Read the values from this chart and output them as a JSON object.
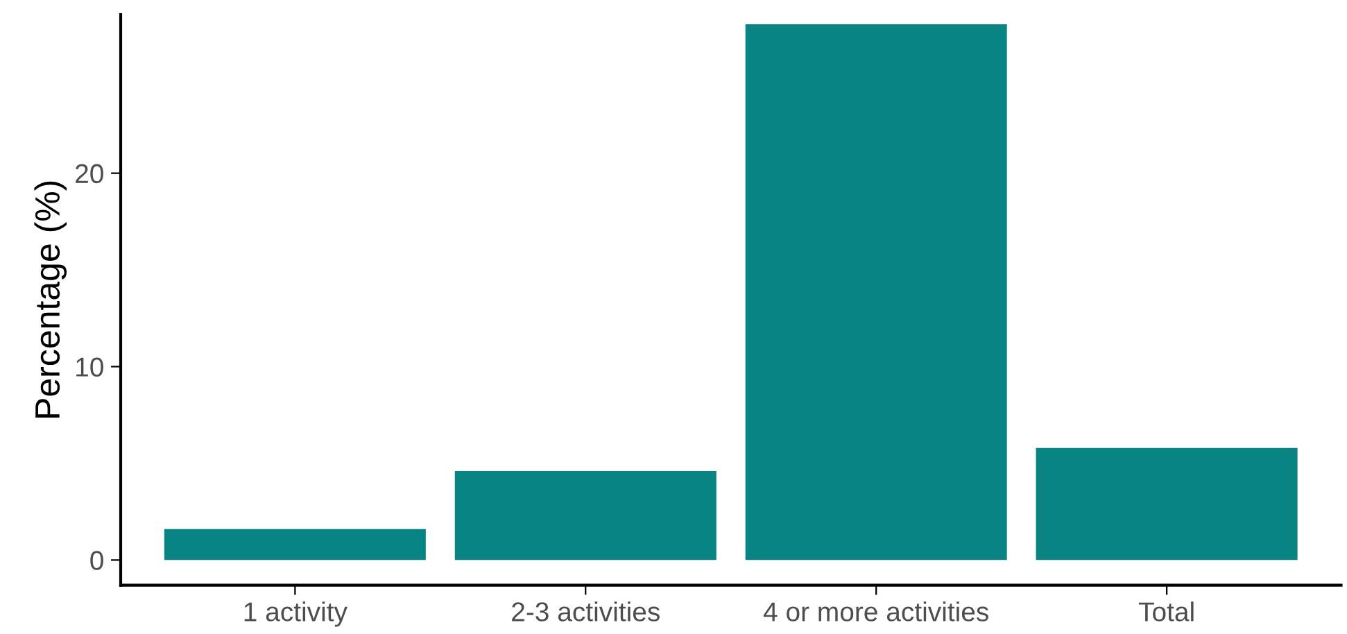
{
  "chart_data": {
    "type": "bar",
    "ylabel": "Percentage (%)",
    "categories": [
      "1 activity",
      "2-3 activities",
      "4 or more activities",
      "Total"
    ],
    "values": [
      1.6,
      4.6,
      27.7,
      5.8
    ],
    "color": "#088583",
    "ylim": [
      -1.3,
      28.2
    ],
    "yticks": [
      0,
      10,
      20
    ],
    "grid": false
  }
}
